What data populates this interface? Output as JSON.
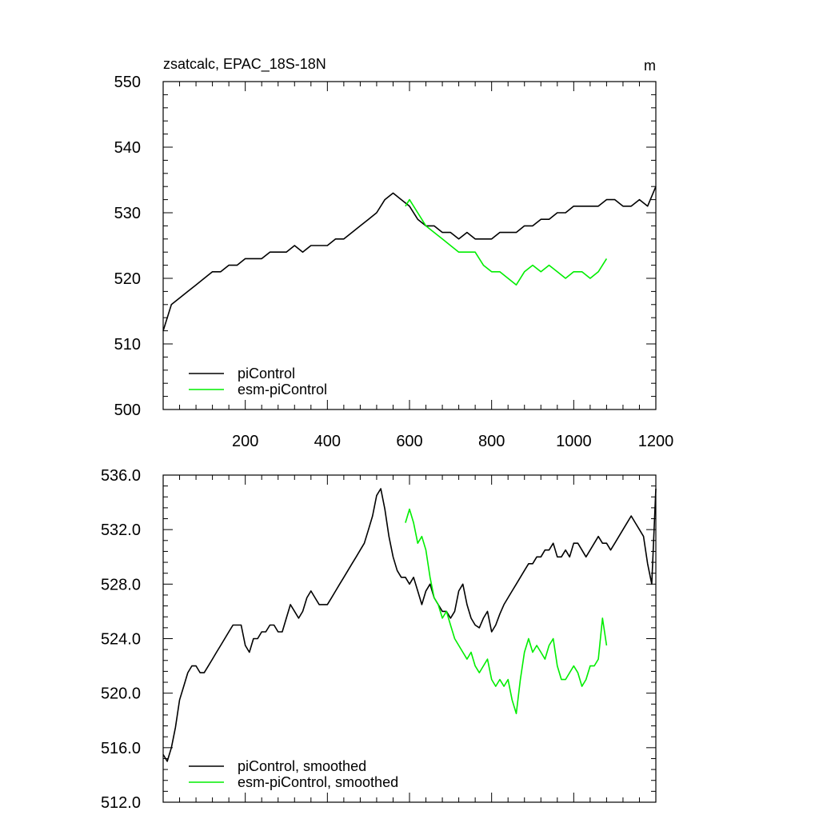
{
  "chart_data": [
    {
      "type": "line",
      "title": "zsatcalc, EPAC_18S-18N",
      "units": "m",
      "xlim": [
        0,
        1200
      ],
      "ylim": [
        500,
        550
      ],
      "xticks": [
        200,
        400,
        600,
        800,
        1000,
        1200
      ],
      "yticks": [
        500,
        510,
        520,
        530,
        540,
        550
      ],
      "ytick_labels": [
        "500",
        "510",
        "520",
        "530",
        "540",
        "550"
      ],
      "legend": "bottom-left",
      "series": [
        {
          "name": "piControl",
          "color": "#000000",
          "x": [
            0,
            20,
            40,
            60,
            80,
            100,
            120,
            140,
            160,
            180,
            200,
            220,
            240,
            260,
            280,
            300,
            320,
            340,
            360,
            380,
            400,
            420,
            440,
            460,
            480,
            500,
            520,
            540,
            560,
            580,
            600,
            620,
            640,
            660,
            680,
            700,
            720,
            740,
            760,
            780,
            800,
            820,
            840,
            860,
            880,
            900,
            920,
            940,
            960,
            980,
            1000,
            1020,
            1040,
            1060,
            1080,
            1100,
            1120,
            1140,
            1160,
            1180,
            1200
          ],
          "values": [
            512,
            516,
            517,
            518,
            519,
            520,
            521,
            521,
            522,
            522,
            523,
            523,
            523,
            524,
            524,
            524,
            525,
            524,
            525,
            525,
            525,
            526,
            526,
            527,
            528,
            529,
            530,
            532,
            533,
            532,
            531,
            529,
            528,
            528,
            527,
            527,
            526,
            527,
            526,
            526,
            526,
            527,
            527,
            527,
            528,
            528,
            529,
            529,
            530,
            530,
            531,
            531,
            531,
            531,
            532,
            532,
            531,
            531,
            532,
            531,
            534
          ]
        },
        {
          "name": "esm-piControl",
          "color": "#00ee00",
          "x": [
            590,
            600,
            620,
            640,
            660,
            680,
            700,
            720,
            740,
            760,
            780,
            800,
            820,
            840,
            860,
            880,
            900,
            920,
            940,
            960,
            980,
            1000,
            1020,
            1040,
            1060,
            1080
          ],
          "values": [
            531,
            532,
            530,
            528,
            527,
            526,
            525,
            524,
            524,
            524,
            522,
            521,
            521,
            520,
            519,
            521,
            522,
            521,
            522,
            521,
            520,
            521,
            521,
            520,
            521,
            523
          ]
        }
      ]
    },
    {
      "type": "line",
      "title": "",
      "xlim": [
        0,
        1200
      ],
      "ylim": [
        512,
        536
      ],
      "xticks": [
        200,
        400,
        600,
        800,
        1000,
        1200
      ],
      "yticks": [
        512,
        516,
        520,
        524,
        528,
        532,
        536
      ],
      "ytick_labels": [
        "512.0",
        "516.0",
        "520.0",
        "524.0",
        "528.0",
        "532.0",
        "536.0"
      ],
      "legend": "bottom-left",
      "series": [
        {
          "name": "piControl, smoothed",
          "color": "#000000",
          "x": [
            0,
            10,
            20,
            30,
            40,
            50,
            60,
            70,
            80,
            90,
            100,
            110,
            120,
            130,
            140,
            150,
            160,
            170,
            180,
            190,
            200,
            210,
            220,
            230,
            240,
            250,
            260,
            270,
            280,
            290,
            300,
            310,
            320,
            330,
            340,
            350,
            360,
            370,
            380,
            390,
            400,
            410,
            420,
            430,
            440,
            450,
            460,
            470,
            480,
            490,
            500,
            510,
            520,
            530,
            540,
            550,
            560,
            570,
            580,
            590,
            600,
            610,
            620,
            630,
            640,
            650,
            660,
            670,
            680,
            690,
            700,
            710,
            720,
            730,
            740,
            750,
            760,
            770,
            780,
            790,
            800,
            810,
            820,
            830,
            840,
            850,
            860,
            870,
            880,
            890,
            900,
            910,
            920,
            930,
            940,
            950,
            960,
            970,
            980,
            990,
            1000,
            1010,
            1020,
            1030,
            1040,
            1050,
            1060,
            1070,
            1080,
            1090,
            1100,
            1110,
            1120,
            1130,
            1140,
            1150,
            1160,
            1170,
            1180,
            1190,
            1200
          ],
          "values": [
            515.5,
            515,
            516,
            517.5,
            519.5,
            520.5,
            521.5,
            522,
            522,
            521.5,
            521.5,
            522,
            522.5,
            523,
            523.5,
            524,
            524.5,
            525,
            525,
            525,
            523.5,
            523,
            524,
            524,
            524.5,
            524.5,
            525,
            525,
            524.5,
            524.5,
            525.5,
            526.5,
            526,
            525.5,
            526,
            527,
            527.5,
            527,
            526.5,
            526.5,
            526.5,
            527,
            527.5,
            528,
            528.5,
            529,
            529.5,
            530,
            530.5,
            531,
            532,
            533,
            534.5,
            535,
            533.5,
            531.5,
            530,
            529,
            528.5,
            528.5,
            528,
            528.5,
            527.5,
            526.5,
            527.5,
            528,
            527,
            526.5,
            526,
            526,
            525.5,
            526,
            527.5,
            528,
            526.5,
            525.5,
            525,
            524.8,
            525.5,
            526,
            524.5,
            525,
            525.8,
            526.5,
            527,
            527.5,
            528,
            528.5,
            529,
            529.5,
            529.5,
            530,
            530,
            530.5,
            530.5,
            531,
            530,
            530,
            530.5,
            530,
            531,
            531,
            530.5,
            530,
            530.5,
            531,
            531.5,
            531,
            531,
            530.5,
            531,
            531.5,
            532,
            532.5,
            533,
            532.5,
            532,
            531.5,
            529.5,
            528,
            535
          ]
        },
        {
          "name": "esm-piControl, smoothed",
          "color": "#00ee00",
          "x": [
            590,
            600,
            610,
            620,
            630,
            640,
            650,
            660,
            670,
            680,
            690,
            700,
            710,
            720,
            730,
            740,
            750,
            760,
            770,
            780,
            790,
            800,
            810,
            820,
            830,
            840,
            850,
            860,
            870,
            880,
            890,
            900,
            910,
            920,
            930,
            940,
            950,
            960,
            970,
            980,
            990,
            1000,
            1010,
            1020,
            1030,
            1040,
            1050,
            1060,
            1070,
            1080
          ],
          "values": [
            532.5,
            533.5,
            532.5,
            531,
            531.5,
            530.5,
            528.5,
            527,
            526.5,
            525.5,
            526,
            525,
            524,
            523.5,
            523,
            522.5,
            523,
            522,
            521.5,
            522,
            522.5,
            521,
            520.5,
            521,
            520.5,
            521,
            519.5,
            518.5,
            521,
            523,
            524,
            523,
            523.5,
            523,
            522.5,
            523.5,
            524,
            522,
            521,
            521,
            521.5,
            522,
            521.5,
            520.5,
            521,
            522,
            522,
            522.5,
            525.5,
            523.5
          ]
        }
      ]
    }
  ]
}
